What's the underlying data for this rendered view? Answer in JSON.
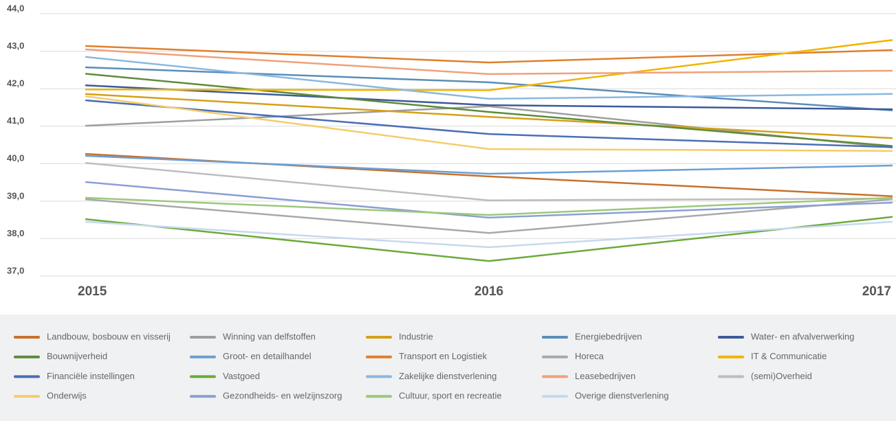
{
  "chart_data": {
    "type": "line",
    "categories": [
      "2015",
      "2016",
      "2017"
    ],
    "ylim": [
      37,
      44
    ],
    "yticks": [
      {
        "value": 37,
        "label": "37,0"
      },
      {
        "value": 38,
        "label": "38,0"
      },
      {
        "value": 39,
        "label": "39,0"
      },
      {
        "value": 40,
        "label": "40,0"
      },
      {
        "value": 41,
        "label": "41,0"
      },
      {
        "value": 42,
        "label": "42,0"
      },
      {
        "value": 43,
        "label": "43,0"
      },
      {
        "value": 44,
        "label": "44,0"
      }
    ],
    "grid": true,
    "series": [
      {
        "name": "Landbouw, bosbouw en visserij",
        "color": "#c8702a",
        "values": [
          40.26,
          39.66,
          39.13
        ]
      },
      {
        "name": "Winning van delfstoffen",
        "color": "#9e9e9e",
        "values": [
          41.01,
          41.53,
          40.43
        ]
      },
      {
        "name": "Industrie",
        "color": "#d4a017",
        "values": [
          41.86,
          41.25,
          40.68
        ]
      },
      {
        "name": "Energiebedrijven",
        "color": "#5b8db8",
        "values": [
          42.57,
          42.17,
          41.42
        ]
      },
      {
        "name": "Water- en afvalverwerking",
        "color": "#3c5a9a",
        "values": [
          42.09,
          41.56,
          41.45
        ]
      },
      {
        "name": "Bouwnijverheid",
        "color": "#5e8b3a",
        "values": [
          42.4,
          41.38,
          40.47
        ]
      },
      {
        "name": "Groot- en detailhandel",
        "color": "#6a9fd4",
        "values": [
          40.21,
          39.73,
          39.95
        ]
      },
      {
        "name": "Transport en Logistiek",
        "color": "#e07f2c",
        "values": [
          43.14,
          42.7,
          43.03
        ]
      },
      {
        "name": "Horeca",
        "color": "#a8a8a8",
        "values": [
          39.05,
          38.15,
          39.05
        ]
      },
      {
        "name": "IT & Communicatie",
        "color": "#f0b400",
        "values": [
          41.98,
          41.96,
          43.3
        ]
      },
      {
        "name": "Financiële instellingen",
        "color": "#4a6fb5",
        "values": [
          41.69,
          40.79,
          40.44
        ]
      },
      {
        "name": "Vastgoed",
        "color": "#6aaa3a",
        "values": [
          38.52,
          37.4,
          38.58
        ]
      },
      {
        "name": "Zakelijke dienstverlening",
        "color": "#8ab8e0",
        "values": [
          42.85,
          41.73,
          41.86
        ]
      },
      {
        "name": "Leasebedrijven",
        "color": "#f0a07a",
        "values": [
          43.05,
          42.39,
          42.48
        ]
      },
      {
        "name": "(semi)Overheid",
        "color": "#bdbdbd",
        "values": [
          40.02,
          39.02,
          39.07
        ]
      },
      {
        "name": "Onderwijs",
        "color": "#f5cc6a",
        "values": [
          41.8,
          40.39,
          40.34
        ]
      },
      {
        "name": "Gezondheids- en welzijnszorg",
        "color": "#8c9fd4",
        "values": [
          39.51,
          38.56,
          38.96
        ]
      },
      {
        "name": "Cultuur, sport en recreatie",
        "color": "#9cc87a",
        "values": [
          39.09,
          38.63,
          39.09
        ]
      },
      {
        "name": "Overige dienstverlening",
        "color": "#c5d9ee",
        "values": [
          38.45,
          37.77,
          38.45
        ]
      }
    ]
  }
}
